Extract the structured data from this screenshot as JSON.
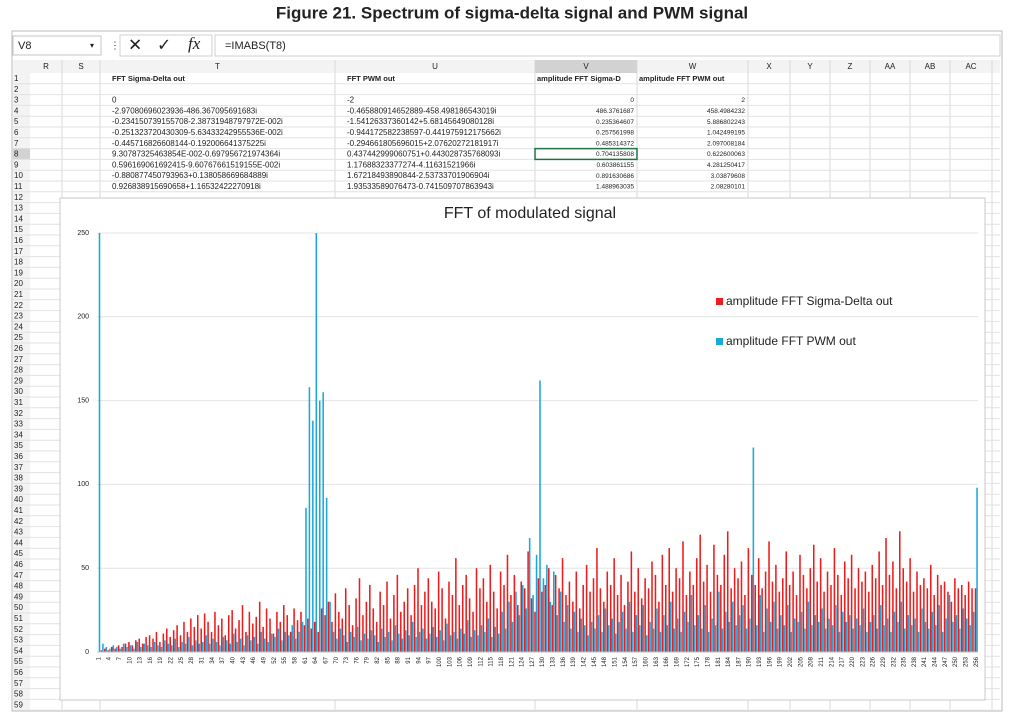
{
  "caption": "Figure 21. Spectrum of sigma-delta signal and PWM signal",
  "name_box": "V8",
  "formula": "=IMABS(T8)",
  "columns": [
    "R",
    "S",
    "T",
    "U",
    "V",
    "W",
    "X",
    "Y",
    "Z",
    "AA",
    "AB",
    "AC"
  ],
  "row_numbers": [
    1,
    2,
    3,
    4,
    5,
    6,
    7,
    8,
    9,
    10,
    11,
    12,
    13,
    14,
    15,
    16,
    17,
    18,
    19,
    20,
    21,
    22,
    23,
    24,
    25,
    26,
    27,
    28,
    29,
    30,
    31,
    32,
    33,
    34,
    35,
    36,
    37,
    38,
    39,
    40,
    41,
    42,
    43,
    44,
    45,
    46,
    47,
    48,
    49,
    50,
    51,
    52,
    53,
    54,
    55,
    56,
    57,
    58,
    59
  ],
  "headers": [
    "FFT Sigma-Delta out",
    "FFT PWM out",
    "amplitude FFT Sigma-D",
    "amplitude FFT PWM out"
  ],
  "rows": [
    [
      "0",
      "-2",
      "0",
      "2"
    ],
    [
      "-2.97080696023936-486.367095691683i",
      "-0.465880914652889-458.498186543019i",
      "486.3761687",
      "458.4984232"
    ],
    [
      "-0.234150739155708-2.38731948797972E-002i",
      "-1.54126337360142+5.68145649080128i",
      "0.235364607",
      "5.886802243"
    ],
    [
      "-0.251323720430309-5.63433242955536E-002i",
      "-0.944172582238597-0.441975912175662i",
      "0.257561998",
      "1.042499195"
    ],
    [
      "-0.445716826608144-0.192006641375225i",
      "-0.294661805696015+2.07620272181917i",
      "0.485314372",
      "2.097008184"
    ],
    [
      "9.30787325463854E-002-0.697956721974364i",
      "0.437442999060751+0.443028735768093i",
      "0.704135808",
      "0.622600063"
    ],
    [
      "0.596169061692415-9.60767661519155E-002i",
      "1.17688323377274-4.11631521966i",
      "0.603861155",
      "4.281250417"
    ],
    [
      "-0.880877450793963+0.138058669684889i",
      "1.67218493890844-2.53733701906904i",
      "0.891630686",
      "3.03879608"
    ],
    [
      "0.926838915690658+1.16532422270918i",
      "1.93533589076473-0.741509707863943i",
      "1.488963035",
      "2.08280101"
    ]
  ],
  "chart_data": {
    "type": "bar",
    "title": "FFT of modulated signal",
    "grid": true,
    "legend": "right",
    "ylim": [
      0,
      250
    ],
    "yticks": [
      0,
      50,
      100,
      150,
      200,
      250
    ],
    "categories": [
      1,
      null,
      null,
      4,
      null,
      null,
      7,
      null,
      null,
      10,
      null,
      null,
      13,
      null,
      null,
      16,
      null,
      null,
      19,
      null,
      null,
      22,
      null,
      null,
      25,
      null,
      null,
      28,
      null,
      null,
      31,
      null,
      null,
      34,
      null,
      null,
      37,
      null,
      null,
      40,
      null,
      null,
      43,
      null,
      null,
      46,
      null,
      null,
      49,
      null,
      null,
      52,
      null,
      null,
      55,
      null,
      null,
      58,
      null,
      null,
      61,
      null,
      null,
      64,
      null,
      null,
      67,
      null,
      null,
      70,
      null,
      null,
      73,
      null,
      null,
      76,
      null,
      null,
      79,
      null,
      null,
      82,
      null,
      null,
      85,
      null,
      null,
      88,
      null,
      null,
      91,
      null,
      null,
      94,
      null,
      null,
      97,
      null,
      null,
      100,
      null,
      null,
      103,
      null,
      null,
      106,
      null,
      null,
      109,
      null,
      null,
      112,
      null,
      null,
      115,
      null,
      null,
      118,
      null,
      null,
      121,
      null,
      null,
      124,
      null,
      null,
      127,
      null,
      null,
      130,
      null,
      null,
      133,
      null,
      null,
      136,
      null,
      null,
      139,
      null,
      null,
      142,
      null,
      null,
      145,
      null,
      null,
      148,
      null,
      null,
      151,
      null,
      null,
      154,
      null,
      null,
      157,
      null,
      null,
      160,
      null,
      null,
      163,
      null,
      null,
      166,
      null,
      null,
      169,
      null,
      null,
      172,
      null,
      null,
      175,
      null,
      null,
      178,
      null,
      null,
      181,
      null,
      null,
      184,
      null,
      null,
      187,
      null,
      null,
      190,
      null,
      null,
      193,
      null,
      null,
      196,
      null,
      null,
      199,
      null,
      null,
      202,
      null,
      null,
      205,
      null,
      null,
      208,
      null,
      null,
      211,
      null,
      null,
      214,
      null,
      null,
      217,
      null,
      null,
      220,
      null,
      null,
      223,
      null,
      null,
      226,
      null,
      null,
      229,
      null,
      null,
      232,
      null,
      null,
      235,
      null,
      null,
      238,
      null,
      null,
      241,
      null,
      null,
      244,
      null,
      null,
      247,
      null,
      null,
      250,
      null,
      null,
      253,
      null,
      null,
      256
    ],
    "series": [
      {
        "name": "amplitude FFT Sigma-Delta out",
        "color": "#ee1c1c",
        "values": [
          0,
          1,
          2,
          1,
          3,
          2,
          4,
          3,
          5,
          6,
          4,
          7,
          8,
          5,
          9,
          10,
          8,
          12,
          6,
          11,
          14,
          9,
          13,
          16,
          10,
          18,
          12,
          20,
          15,
          22,
          14,
          23,
          18,
          12,
          24,
          16,
          20,
          10,
          22,
          25,
          14,
          19,
          28,
          12,
          24,
          17,
          21,
          30,
          15,
          26,
          20,
          11,
          24,
          18,
          28,
          22,
          12,
          26,
          19,
          24,
          16,
          20,
          14,
          18,
          12,
          26,
          22,
          30,
          18,
          35,
          24,
          20,
          38,
          28,
          16,
          32,
          44,
          22,
          30,
          40,
          26,
          18,
          36,
          28,
          42,
          20,
          34,
          46,
          24,
          30,
          38,
          22,
          40,
          50,
          28,
          36,
          44,
          30,
          26,
          48,
          38,
          20,
          42,
          34,
          56,
          28,
          40,
          46,
          32,
          24,
          50,
          38,
          44,
          30,
          52,
          36,
          26,
          48,
          40,
          58,
          34,
          46,
          28,
          42,
          38,
          60,
          32,
          24,
          44,
          36,
          40,
          50,
          28,
          46,
          38,
          56,
          34,
          42,
          30,
          48,
          26,
          40,
          52,
          36,
          44,
          62,
          38,
          30,
          48,
          40,
          56,
          34,
          46,
          28,
          42,
          60,
          36,
          50,
          32,
          44,
          38,
          54,
          46,
          30,
          58,
          40,
          62,
          36,
          50,
          44,
          66,
          34,
          48,
          40,
          56,
          70,
          42,
          52,
          36,
          64,
          46,
          40,
          58,
          72,
          38,
          50,
          44,
          54,
          34,
          62,
          46,
          40,
          56,
          38,
          48,
          66,
          42,
          52,
          36,
          44,
          60,
          40,
          48,
          34,
          58,
          46,
          38,
          50,
          64,
          42,
          56,
          36,
          48,
          40,
          62,
          46,
          34,
          54,
          44,
          58,
          38,
          50,
          42,
          48,
          36,
          52,
          44,
          60,
          40,
          68,
          46,
          54,
          38,
          72,
          50,
          42,
          56,
          36,
          48,
          40,
          44,
          38,
          52,
          34,
          46,
          40,
          42,
          36,
          30,
          44,
          38,
          40,
          34,
          42,
          38,
          38
        ]
      },
      {
        "name": "amplitude FFT PWM out",
        "color": "#1aa7dc",
        "values": [
          250,
          5,
          3,
          2,
          4,
          3,
          2,
          5,
          3,
          4,
          2,
          6,
          3,
          5,
          4,
          3,
          6,
          4,
          3,
          7,
          5,
          4,
          8,
          3,
          6,
          5,
          9,
          4,
          7,
          5,
          6,
          10,
          5,
          8,
          6,
          4,
          9,
          7,
          5,
          11,
          6,
          8,
          4,
          10,
          7,
          9,
          5,
          12,
          8,
          6,
          11,
          9,
          14,
          7,
          12,
          10,
          16,
          8,
          12,
          18,
          86,
          158,
          138,
          250,
          150,
          155,
          92,
          30,
          12,
          8,
          14,
          10,
          6,
          12,
          9,
          15,
          7,
          11,
          8,
          13,
          10,
          6,
          14,
          9,
          12,
          7,
          16,
          11,
          8,
          13,
          10,
          18,
          9,
          12,
          14,
          8,
          11,
          15,
          9,
          13,
          7,
          17,
          10,
          12,
          8,
          14,
          11,
          19,
          9,
          13,
          10,
          16,
          12,
          20,
          9,
          15,
          11,
          24,
          14,
          30,
          18,
          36,
          22,
          40,
          26,
          68,
          34,
          58,
          162,
          44,
          52,
          30,
          48,
          22,
          36,
          18,
          28,
          14,
          24,
          12,
          20,
          16,
          10,
          18,
          14,
          22,
          12,
          26,
          16,
          20,
          11,
          18,
          24,
          14,
          30,
          12,
          22,
          16,
          28,
          10,
          18,
          14,
          26,
          12,
          22,
          16,
          30,
          14,
          20,
          12,
          24,
          18,
          34,
          16,
          22,
          14,
          28,
          12,
          20,
          16,
          36,
          14,
          24,
          18,
          30,
          16,
          22,
          28,
          14,
          20,
          122,
          16,
          34,
          12,
          26,
          18,
          30,
          14,
          22,
          16,
          28,
          12,
          20,
          18,
          24,
          14,
          30,
          16,
          22,
          18,
          26,
          14,
          20,
          16,
          28,
          12,
          24,
          18,
          22,
          14,
          20,
          16,
          26,
          12,
          18,
          22,
          14,
          28,
          16,
          20,
          12,
          24,
          18,
          30,
          14,
          22,
          16,
          20,
          12,
          26,
          18,
          14,
          24,
          16,
          28,
          12,
          20,
          34,
          18,
          22,
          14,
          26,
          20,
          16,
          24,
          98
        ]
      }
    ]
  }
}
